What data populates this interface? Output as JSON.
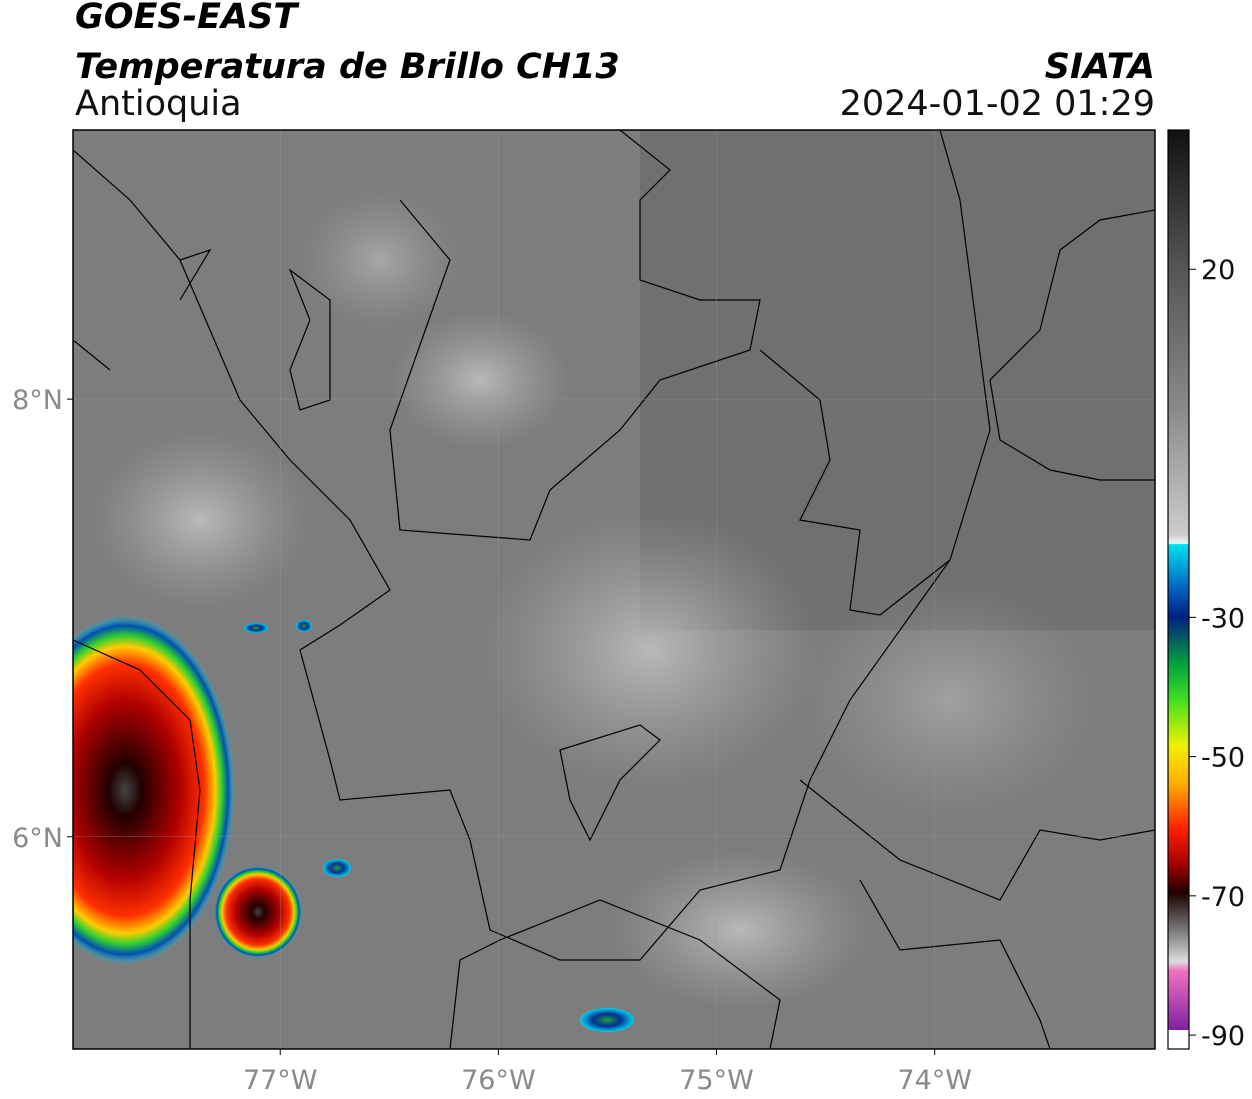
{
  "header": {
    "satellite": "GOES-EAST",
    "product": "Temperatura de Brillo CH13",
    "region": "Antioquia",
    "agency": "SIATA",
    "datetime": "2024-01-02 01:29"
  },
  "map": {
    "lon_range": [
      -77.95,
      -72.99
    ],
    "lat_range": [
      5.03,
      9.23
    ],
    "lat_ticks": [
      {
        "value": 8,
        "label": "8°N"
      },
      {
        "value": 6,
        "label": "6°N"
      }
    ],
    "lon_ticks": [
      {
        "value": -77,
        "label": "77°W"
      },
      {
        "value": -76,
        "label": "76°W"
      },
      {
        "value": -75,
        "label": "75°W"
      },
      {
        "value": -74,
        "label": "74°W"
      }
    ]
  },
  "colorbar": {
    "range": [
      -92,
      40
    ],
    "ticks": [
      20,
      -30,
      -50,
      -70,
      -90
    ]
  }
}
